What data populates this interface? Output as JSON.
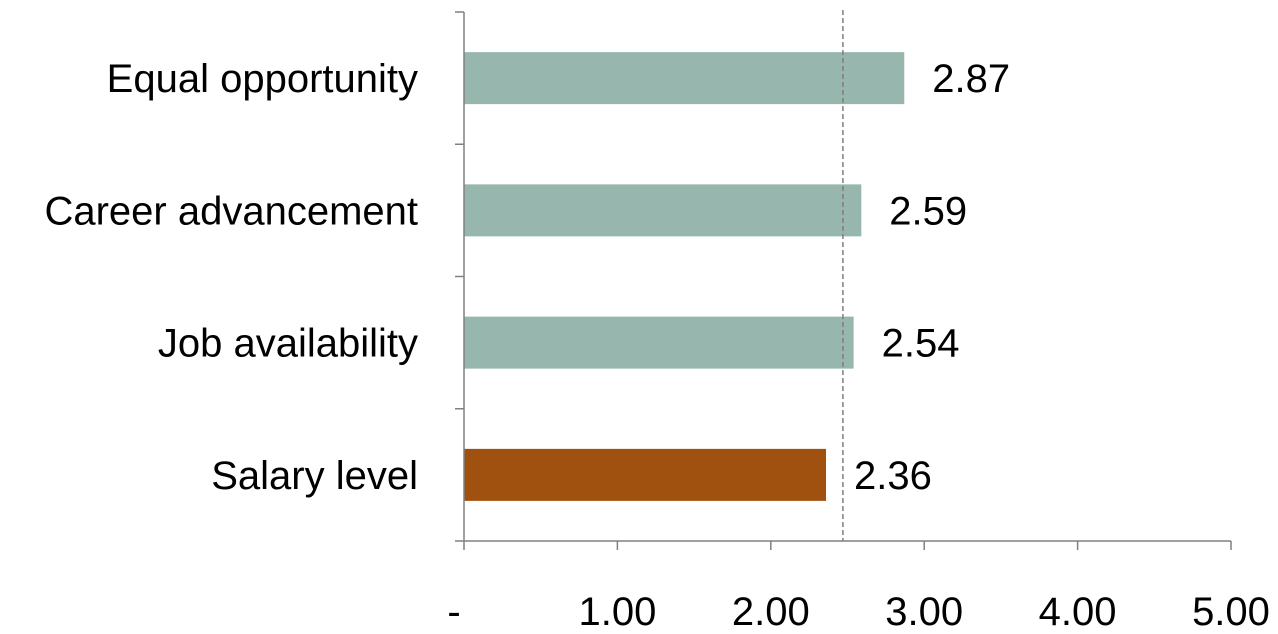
{
  "chart_data": {
    "type": "bar",
    "orientation": "horizontal",
    "categories": [
      "Equal opportunity",
      "Career advancement",
      "Job availability",
      "Salary level"
    ],
    "values": [
      2.87,
      2.59,
      2.54,
      2.36
    ],
    "data_labels": [
      "2.87",
      "2.59",
      "2.54",
      "2.36"
    ],
    "bar_colors": [
      "#97b7ae",
      "#97b7ae",
      "#97b7ae",
      "#a0500f"
    ],
    "xlim": [
      0,
      5
    ],
    "x_ticks": [
      0,
      1,
      2,
      3,
      4,
      5
    ],
    "x_tick_labels": [
      "-",
      "1.00",
      "2.00",
      "3.00",
      "4.00",
      "5.00"
    ],
    "reference_line": {
      "value": 2.47,
      "style": "dashed",
      "color": "#7f7f7f"
    },
    "grid": false,
    "legend": "none"
  }
}
